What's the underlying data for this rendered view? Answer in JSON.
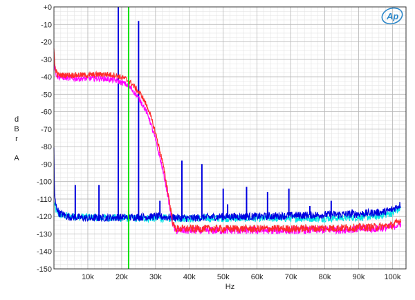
{
  "chart_data": {
    "type": "line",
    "title": "",
    "xlabel": "Hz",
    "ylabel": "dBrA",
    "ylabel_letters": [
      "d",
      "B",
      "r",
      "A"
    ],
    "xlim": [
      0,
      104000
    ],
    "ylim": [
      -150,
      0
    ],
    "x_ticks": [
      {
        "v": 10000,
        "label": "10k"
      },
      {
        "v": 20000,
        "label": "20k"
      },
      {
        "v": 30000,
        "label": "30k"
      },
      {
        "v": 40000,
        "label": "40k"
      },
      {
        "v": 50000,
        "label": "50k"
      },
      {
        "v": 60000,
        "label": "60k"
      },
      {
        "v": 70000,
        "label": "70k"
      },
      {
        "v": 80000,
        "label": "80k"
      },
      {
        "v": 90000,
        "label": "90k"
      },
      {
        "v": 100000,
        "label": "100k"
      }
    ],
    "y_ticks": [
      {
        "v": 0,
        "label": "+0"
      },
      {
        "v": -10,
        "label": "-10"
      },
      {
        "v": -20,
        "label": "-20"
      },
      {
        "v": -30,
        "label": "-30"
      },
      {
        "v": -40,
        "label": "-40"
      },
      {
        "v": -50,
        "label": "-50"
      },
      {
        "v": -60,
        "label": "-60"
      },
      {
        "v": -70,
        "label": "-70"
      },
      {
        "v": -80,
        "label": "-80"
      },
      {
        "v": -90,
        "label": "-90"
      },
      {
        "v": -100,
        "label": "-100"
      },
      {
        "v": -110,
        "label": "-110"
      },
      {
        "v": -120,
        "label": "-120"
      },
      {
        "v": -130,
        "label": "-130"
      },
      {
        "v": -140,
        "label": "-140"
      },
      {
        "v": -150,
        "label": "-150"
      }
    ],
    "grid": true,
    "minor_x_step": 2000,
    "minor_y_step": 2.5,
    "marker_line": {
      "x": 22050,
      "color": "#00e000"
    },
    "series": [
      {
        "color": "#00e5e5",
        "points": [
          [
            0,
            -112
          ],
          [
            500,
            -116
          ],
          [
            1500,
            -119
          ],
          [
            5000,
            -120
          ],
          [
            20000,
            -121
          ],
          [
            40000,
            -121
          ],
          [
            60000,
            -121
          ],
          [
            80000,
            -121
          ],
          [
            95000,
            -120
          ],
          [
            100000,
            -118
          ],
          [
            102500,
            -115
          ]
        ]
      },
      {
        "color": "#0000e0",
        "points": [
          [
            0,
            -80
          ],
          [
            150,
            -108
          ],
          [
            600,
            -114
          ],
          [
            1500,
            -118
          ],
          [
            4000,
            -120
          ],
          [
            10000,
            -121
          ],
          [
            20000,
            -120.5
          ],
          [
            30000,
            -120
          ],
          [
            40000,
            -121
          ],
          [
            50000,
            -120
          ],
          [
            60000,
            -120
          ],
          [
            70000,
            -119.5
          ],
          [
            80000,
            -119
          ],
          [
            90000,
            -118.5
          ],
          [
            97000,
            -117.5
          ],
          [
            100000,
            -116
          ],
          [
            102500,
            -113
          ]
        ],
        "spikes": [
          {
            "x": 6300,
            "y": -102
          },
          {
            "x": 13300,
            "y": -102
          },
          {
            "x": 19000,
            "y": 0
          },
          {
            "x": 25000,
            "y": -8
          },
          {
            "x": 31300,
            "y": -111
          },
          {
            "x": 37800,
            "y": -88
          },
          {
            "x": 43700,
            "y": -90
          },
          {
            "x": 50000,
            "y": -104
          },
          {
            "x": 51300,
            "y": -113
          },
          {
            "x": 56900,
            "y": -103
          },
          {
            "x": 63100,
            "y": -106
          },
          {
            "x": 69400,
            "y": -104
          },
          {
            "x": 75600,
            "y": -114
          },
          {
            "x": 81900,
            "y": -111
          },
          {
            "x": 88100,
            "y": -116
          }
        ]
      },
      {
        "color": "#ff00ff",
        "points": [
          [
            0,
            -25
          ],
          [
            250,
            -36
          ],
          [
            1000,
            -40
          ],
          [
            5000,
            -41
          ],
          [
            10000,
            -41
          ],
          [
            15000,
            -41
          ],
          [
            18000,
            -42
          ],
          [
            21000,
            -44
          ],
          [
            23000,
            -47
          ],
          [
            26000,
            -55
          ],
          [
            28000,
            -63
          ],
          [
            30000,
            -76
          ],
          [
            32000,
            -92
          ],
          [
            33500,
            -106
          ],
          [
            34500,
            -118
          ],
          [
            35300,
            -126
          ],
          [
            36000,
            -128
          ],
          [
            50000,
            -128
          ],
          [
            70000,
            -128
          ],
          [
            85000,
            -127.5
          ],
          [
            95000,
            -127
          ],
          [
            100000,
            -126
          ],
          [
            102500,
            -124
          ]
        ]
      },
      {
        "color": "#ff2a2a",
        "points": [
          [
            0,
            -24
          ],
          [
            250,
            -34
          ],
          [
            1000,
            -39
          ],
          [
            5000,
            -39
          ],
          [
            10000,
            -39
          ],
          [
            15000,
            -38.5
          ],
          [
            18000,
            -39
          ],
          [
            21000,
            -41
          ],
          [
            23000,
            -44
          ],
          [
            26000,
            -51
          ],
          [
            28000,
            -59
          ],
          [
            30000,
            -72
          ],
          [
            32000,
            -88
          ],
          [
            33500,
            -104
          ],
          [
            34500,
            -116
          ],
          [
            35300,
            -125
          ],
          [
            36000,
            -127
          ],
          [
            50000,
            -127
          ],
          [
            70000,
            -127
          ],
          [
            85000,
            -126.5
          ],
          [
            95000,
            -126
          ],
          [
            100000,
            -125
          ],
          [
            102500,
            -122
          ]
        ]
      }
    ],
    "logo_text": "Ap"
  }
}
